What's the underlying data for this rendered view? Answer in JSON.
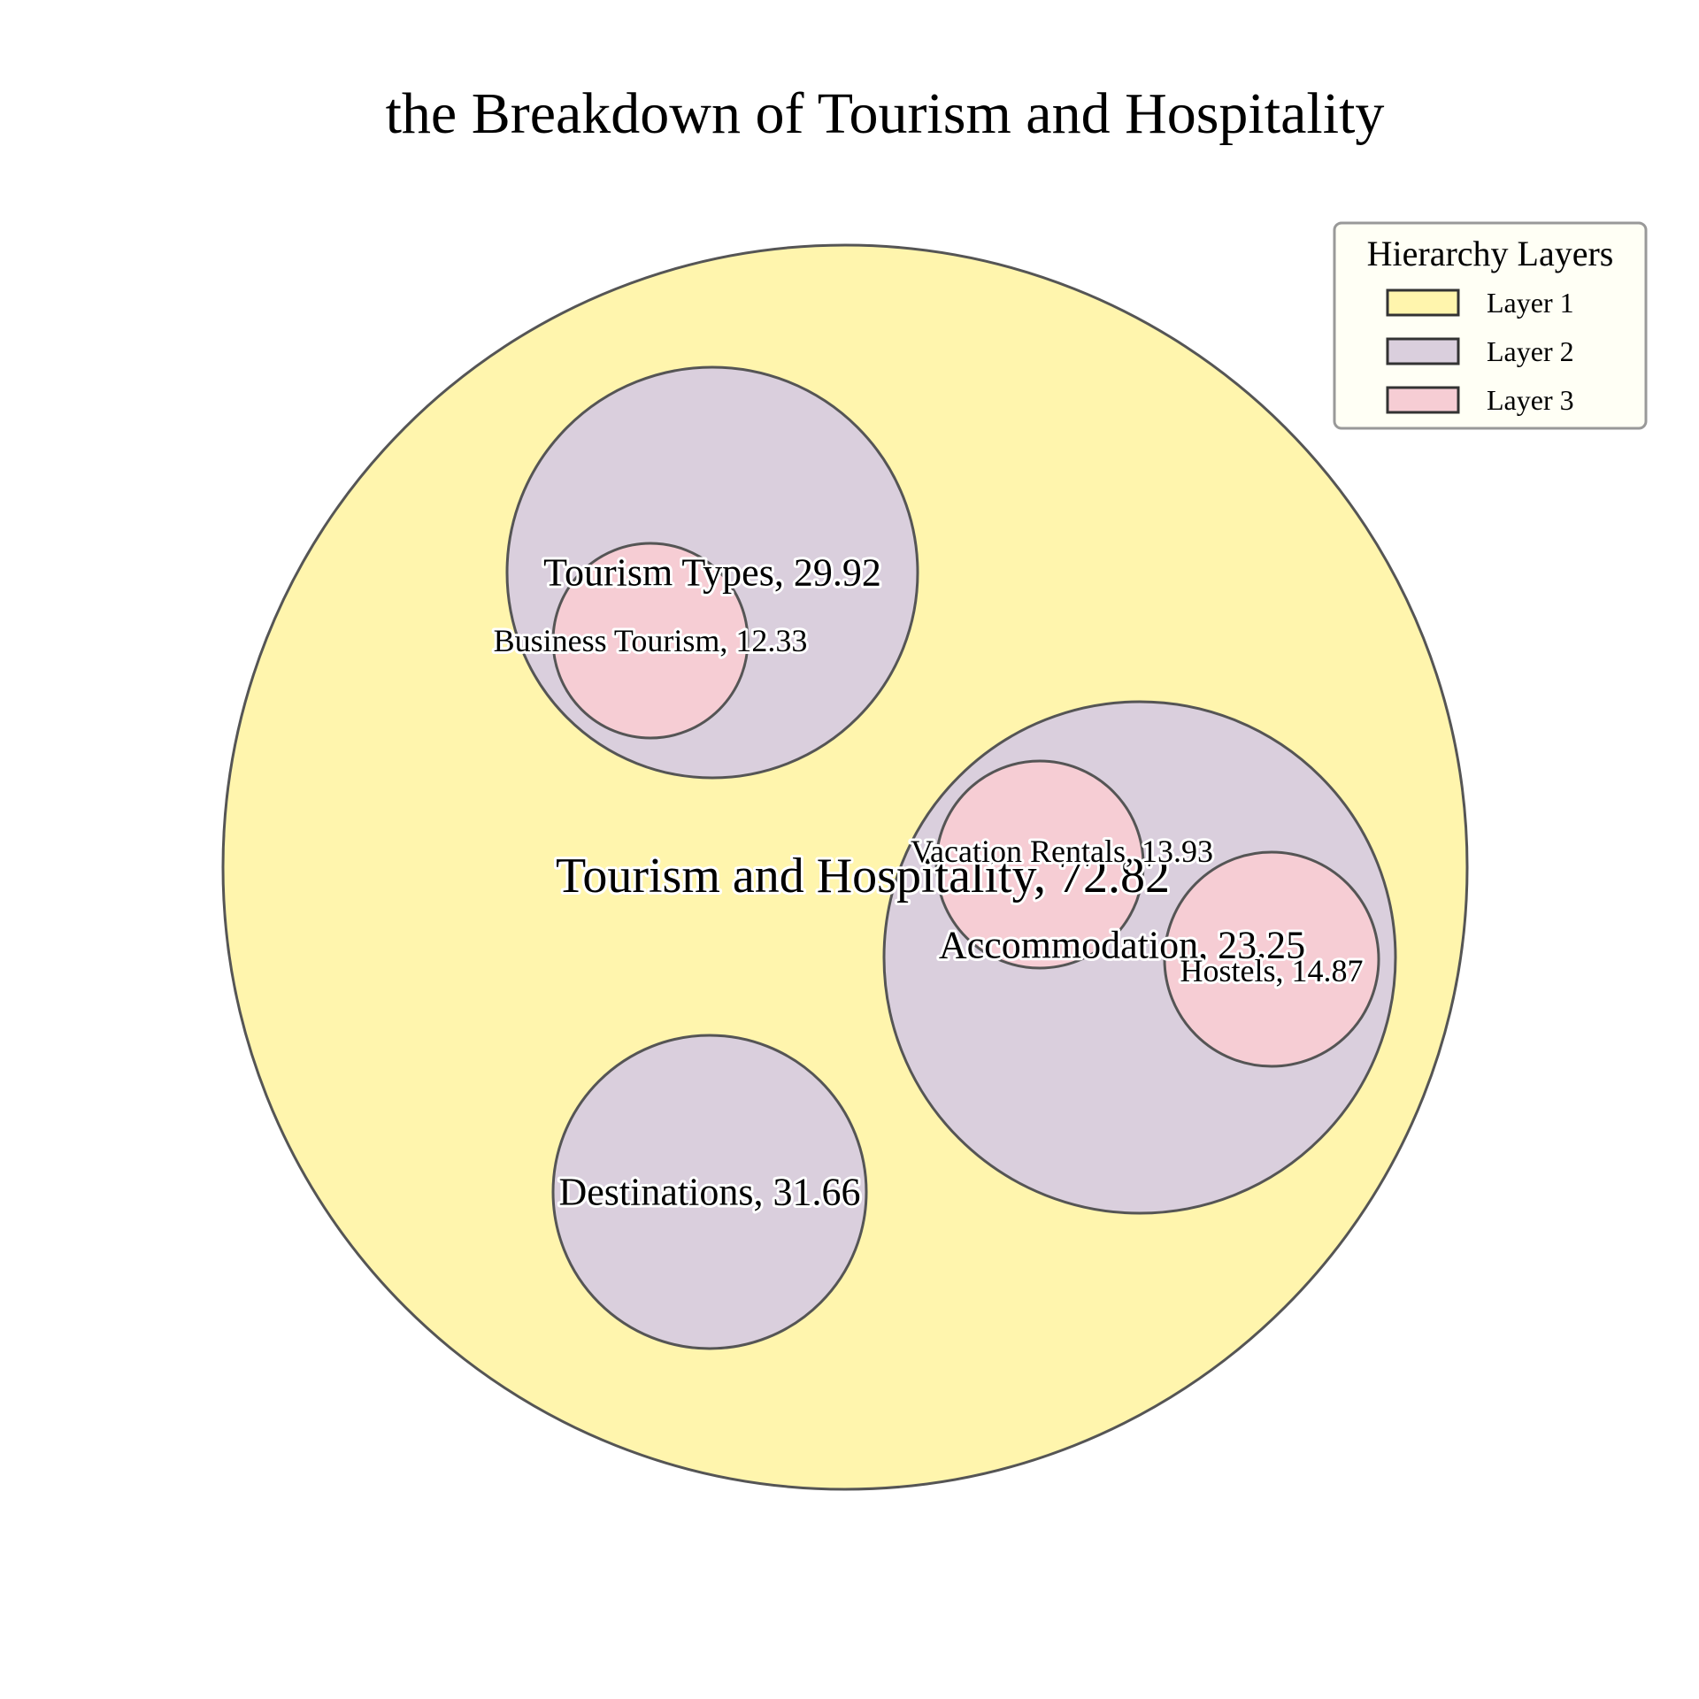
{
  "chart_data": {
    "type": "circle-packing",
    "title": "the Breakdown of Tourism and Hospitality",
    "legend": {
      "title": "Hierarchy Layers",
      "placement": "top-right",
      "items": [
        {
          "label": "Layer 1",
          "color": "#fff5ad"
        },
        {
          "label": "Layer 2",
          "color": "#dacfdd"
        },
        {
          "label": "Layer 3",
          "color": "#f6cdd4"
        }
      ]
    },
    "layer_colors": [
      "#fff5ad",
      "#dacfdd",
      "#f6cdd4"
    ],
    "edge_color": "#555555",
    "nodes": [
      {
        "id": "root",
        "layer": 1,
        "name": "Tourism and Hospitality",
        "value": 72.82,
        "label": "Tourism and Hospitality, 72.82"
      },
      {
        "id": "tourism-types",
        "layer": 2,
        "parent": "root",
        "name": "Tourism Types",
        "value": 29.92,
        "label": "Tourism Types, 29.92"
      },
      {
        "id": "business-tourism",
        "layer": 3,
        "parent": "tourism-types",
        "name": "Business Tourism",
        "value": 12.33,
        "label": "Business Tourism, 12.33"
      },
      {
        "id": "accommodation",
        "layer": 2,
        "parent": "root",
        "name": "Accommodation",
        "value": 23.25,
        "label": "Accommodation, 23.25"
      },
      {
        "id": "vacation-rentals",
        "layer": 3,
        "parent": "accommodation",
        "name": "Vacation Rentals",
        "value": 13.93,
        "label": "Vacation Rentals, 13.93"
      },
      {
        "id": "hostels",
        "layer": 3,
        "parent": "accommodation",
        "name": "Hostels",
        "value": 14.87,
        "label": "Hostels, 14.87"
      },
      {
        "id": "destinations",
        "layer": 2,
        "parent": "root",
        "name": "Destinations",
        "value": 31.66,
        "label": "Destinations, 31.66"
      }
    ]
  }
}
